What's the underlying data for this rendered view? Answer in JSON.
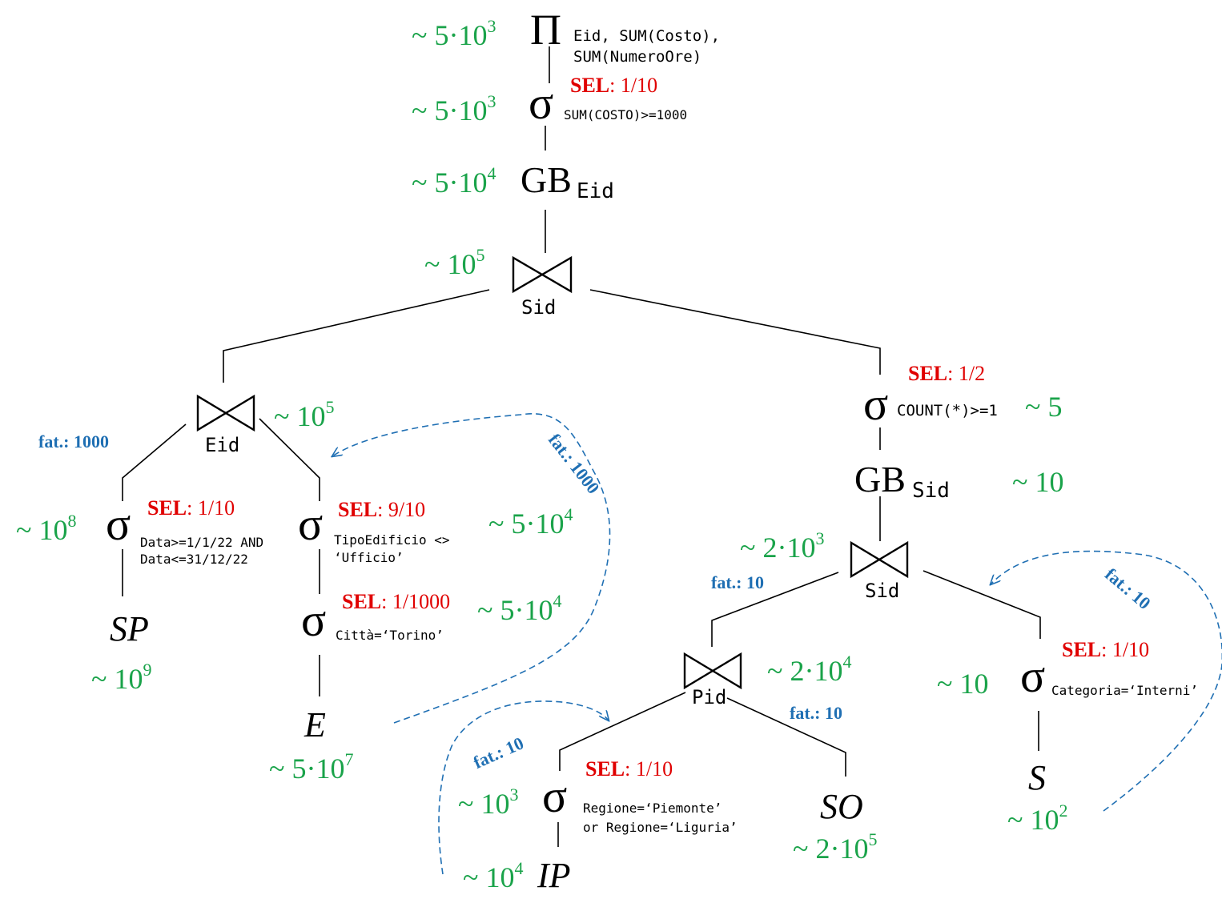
{
  "nodes": {
    "pi": {
      "symbol": "Π",
      "sub1": "Eid, SUM(Costo),",
      "sub2": "SUM(NumeroOre)",
      "card_base": "~ 5·10",
      "card_exp": "3"
    },
    "sigma_cost": {
      "symbol": "σ",
      "sub": "SUM(COSTO)>=1000",
      "sel_key": "SEL",
      "sel_val": ": 1/10",
      "card_base": "~ 5·10",
      "card_exp": "3"
    },
    "gb_eid": {
      "symbol": "GB",
      "sub": "Eid",
      "card_base": "~ 5·10",
      "card_exp": "4"
    },
    "join_sid_top": {
      "label": "Sid",
      "card_base": "~ 10",
      "card_exp": "5"
    },
    "join_eid": {
      "label": "Eid",
      "card_base": "~ 10",
      "card_exp": "5",
      "fat": "fat.: 1000"
    },
    "sigma_data": {
      "symbol": "σ",
      "sub1": "Data>=1/1/22 AND",
      "sub2": "Data<=31/12/22",
      "sel_key": "SEL",
      "sel_val": ": 1/10",
      "card_base": "~ 10",
      "card_exp": "8"
    },
    "rel_sp": {
      "name": "SP",
      "card_base": "~ 10",
      "card_exp": "9"
    },
    "sigma_tipo": {
      "symbol": "σ",
      "sub1": "TipoEdificio <>",
      "sub2": "‘Ufficio’",
      "sel_key": "SEL",
      "sel_val": ": 9/10",
      "card_base": "~ 5·10",
      "card_exp": "4"
    },
    "sigma_citta": {
      "symbol": "σ",
      "sub": "Città=‘Torino’",
      "sel_key": "SEL",
      "sel_val": ": 1/1000",
      "card_base": "~ 5·10",
      "card_exp": "4"
    },
    "rel_e": {
      "name": "E",
      "card_base": "~ 5·10",
      "card_exp": "7"
    },
    "sigma_count": {
      "symbol": "σ",
      "sub": "COUNT(*)>=1",
      "sel_key": "SEL",
      "sel_val": ": 1/2",
      "card": "~ 5"
    },
    "gb_sid": {
      "symbol": "GB",
      "sub": "Sid",
      "card": "~ 10"
    },
    "join_sid_low": {
      "label": "Sid",
      "card_base": "~ 2·10",
      "card_exp": "3",
      "fat": "fat.: 10"
    },
    "join_pid": {
      "label": "Pid",
      "card_base": "~ 2·10",
      "card_exp": "4",
      "fat": "fat.: 10"
    },
    "sigma_regione": {
      "symbol": "σ",
      "sub1": "Regione=‘Piemonte’",
      "sub2": "or Regione=‘Liguria’",
      "sel_key": "SEL",
      "sel_val": ": 1/10",
      "card_base": "~ 10",
      "card_exp": "3"
    },
    "rel_ip": {
      "name": "IP",
      "card_base": "~ 10",
      "card_exp": "4"
    },
    "rel_so": {
      "name": "SO",
      "card_base": "~ 2·10",
      "card_exp": "5"
    },
    "sigma_categoria": {
      "symbol": "σ",
      "sub": "Categoria=‘Interni’",
      "sel_key": "SEL",
      "sel_val": ": 1/10",
      "card": "~ 10"
    },
    "rel_s": {
      "name": "S",
      "card_base": "~ 10",
      "card_exp": "2"
    }
  },
  "arrows": {
    "e_to_eid": "fat.: 1000",
    "s_to_sid": "fat.: 10",
    "ip_to_pid": "fat.: 10"
  },
  "colors": {
    "cardinality": "#1aa34a",
    "selectivity": "#e00000",
    "factor": "#1f6fb3",
    "lines": "#000000"
  }
}
